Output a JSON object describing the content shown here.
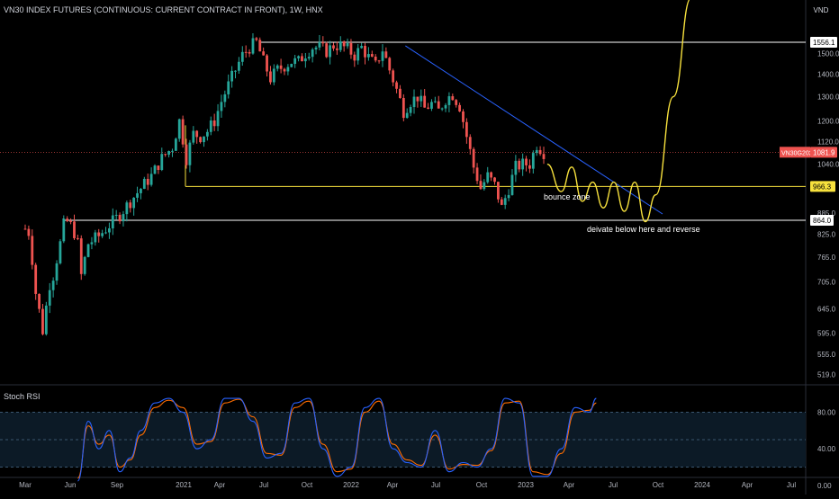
{
  "header": {
    "title": "VN30 INDEX FUTURES (CONTINUOUS: CURRENT CONTRACT IN FRONT), 1W, HNX"
  },
  "price_axis": {
    "currency": "VND",
    "ticks": [
      "1500.0",
      "1400.0",
      "1300.0",
      "1200.0",
      "1120.0",
      "1040.0",
      "885.0",
      "825.0",
      "765.0",
      "705.0",
      "645.0",
      "595.0",
      "555.0",
      "519.0"
    ],
    "tick_values": [
      1500,
      1400,
      1300,
      1200,
      1120,
      1040,
      885,
      825,
      765,
      705,
      645,
      595,
      555,
      519
    ]
  },
  "badges": {
    "level_1556": "1556.1",
    "symbol": "VN30G2023",
    "last_price": "1081.9",
    "level_966": "966.3",
    "level_864": "864.0"
  },
  "annotations": {
    "bounce": "bounce zone",
    "deviate": "deivate below here and reverse"
  },
  "rsi": {
    "title": "Stoch RSI",
    "ticks": [
      "80.00",
      "40.00",
      "0.00"
    ],
    "tick_values": [
      80,
      40,
      0
    ]
  },
  "time_axis": {
    "labels": [
      "Mar",
      "Jun",
      "Sep",
      "2021",
      "Apr",
      "Jul",
      "Oct",
      "2022",
      "Apr",
      "Jul",
      "Oct",
      "2023",
      "Apr",
      "Jul",
      "Oct",
      "2024",
      "Apr",
      "Jul"
    ]
  },
  "colors": {
    "background": "#000000",
    "up": "#26a69a",
    "down": "#ef5350",
    "level_line": "#ffffff",
    "yellow": "#f7e13d",
    "trendline": "#2962ff",
    "rsi_k": "#2962ff",
    "rsi_d": "#ff6d00",
    "rsi_band": "#0c1a26"
  },
  "chart_data": {
    "type": "candlestick",
    "title": "VN30 INDEX FUTURES (CONTINUOUS: CURRENT CONTRACT IN FRONT), 1W, HNX",
    "y_scale": "log",
    "ylim": [
      500,
      1650
    ],
    "x_labels": [
      "Mar",
      "Jun",
      "Sep",
      "2021",
      "Apr",
      "Jul",
      "Oct",
      "2022",
      "Apr",
      "Jul",
      "Oct",
      "2023",
      "Apr",
      "Jul",
      "Oct",
      "2024",
      "Apr",
      "Jul"
    ],
    "close_path": [
      [
        0,
        840
      ],
      [
        1,
        830
      ],
      [
        2,
        760
      ],
      [
        3,
        680
      ],
      [
        4,
        640
      ],
      [
        5,
        600
      ],
      [
        6,
        650
      ],
      [
        7,
        700
      ],
      [
        8,
        720
      ],
      [
        9,
        760
      ],
      [
        10,
        800
      ],
      [
        11,
        850
      ],
      [
        12,
        860
      ],
      [
        13,
        850
      ],
      [
        14,
        830
      ],
      [
        15,
        800
      ],
      [
        16,
        720
      ],
      [
        17,
        760
      ],
      [
        18,
        800
      ],
      [
        21,
        820
      ],
      [
        24,
        850
      ],
      [
        27,
        880
      ],
      [
        30,
        920
      ],
      [
        33,
        960
      ],
      [
        36,
        1000
      ],
      [
        39,
        1060
      ],
      [
        42,
        1100
      ],
      [
        44,
        1200
      ],
      [
        46,
        1060
      ],
      [
        48,
        1150
      ],
      [
        50,
        1140
      ],
      [
        52,
        1160
      ],
      [
        54,
        1200
      ],
      [
        56,
        1280
      ],
      [
        58,
        1350
      ],
      [
        60,
        1420
      ],
      [
        62,
        1490
      ],
      [
        64,
        1530
      ],
      [
        66,
        1556
      ],
      [
        68,
        1460
      ],
      [
        70,
        1380
      ],
      [
        72,
        1420
      ],
      [
        74,
        1440
      ],
      [
        76,
        1460
      ],
      [
        78,
        1460
      ],
      [
        80,
        1500
      ],
      [
        82,
        1530
      ],
      [
        84,
        1530
      ],
      [
        86,
        1510
      ],
      [
        88,
        1540
      ],
      [
        90,
        1540
      ],
      [
        92,
        1520
      ],
      [
        94,
        1490
      ],
      [
        96,
        1530
      ],
      [
        98,
        1480
      ],
      [
        100,
        1440
      ],
      [
        102,
        1520
      ],
      [
        104,
        1420
      ],
      [
        106,
        1330
      ],
      [
        108,
        1240
      ],
      [
        110,
        1280
      ],
      [
        112,
        1300
      ],
      [
        114,
        1250
      ],
      [
        116,
        1270
      ],
      [
        118,
        1240
      ],
      [
        120,
        1290
      ],
      [
        122,
        1310
      ],
      [
        124,
        1260
      ],
      [
        126,
        1140
      ],
      [
        128,
        1030
      ],
      [
        130,
        960
      ],
      [
        132,
        1000
      ],
      [
        134,
        970
      ],
      [
        136,
        900
      ],
      [
        138,
        960
      ],
      [
        140,
        1030
      ],
      [
        142,
        1040
      ],
      [
        144,
        1040
      ],
      [
        146,
        1110
      ],
      [
        148,
        1081.9
      ]
    ],
    "levels": [
      {
        "value": 1556.1,
        "label": "1556.1"
      },
      {
        "value": 1081.9,
        "label": "1081.9"
      },
      {
        "value": 966.3,
        "label": "966.3"
      },
      {
        "value": 864.0,
        "label": "864.0"
      }
    ],
    "projection_path": [
      [
        149,
        1040
      ],
      [
        153,
        950
      ],
      [
        156,
        1030
      ],
      [
        159,
        920
      ],
      [
        162,
        980
      ],
      [
        165,
        900
      ],
      [
        168,
        980
      ],
      [
        171,
        890
      ],
      [
        174,
        980
      ],
      [
        177,
        860
      ],
      [
        180,
        940
      ],
      [
        185,
        1300
      ],
      [
        190,
        1800
      ]
    ],
    "trendline": {
      "start": [
        108,
        1520
      ],
      "end": [
        184,
        880
      ]
    },
    "stoch_rsi": {
      "ylim": [
        0,
        100
      ],
      "bands": [
        20,
        50,
        80
      ],
      "k": [
        [
          0,
          5
        ],
        [
          3,
          70
        ],
        [
          6,
          40
        ],
        [
          9,
          60
        ],
        [
          12,
          15
        ],
        [
          15,
          30
        ],
        [
          18,
          60
        ],
        [
          22,
          90
        ],
        [
          26,
          95
        ],
        [
          30,
          80
        ],
        [
          34,
          40
        ],
        [
          38,
          50
        ],
        [
          42,
          95
        ],
        [
          46,
          95
        ],
        [
          50,
          70
        ],
        [
          54,
          30
        ],
        [
          58,
          35
        ],
        [
          62,
          90
        ],
        [
          66,
          95
        ],
        [
          70,
          40
        ],
        [
          74,
          10
        ],
        [
          78,
          20
        ],
        [
          82,
          85
        ],
        [
          86,
          95
        ],
        [
          90,
          40
        ],
        [
          94,
          25
        ],
        [
          98,
          20
        ],
        [
          102,
          60
        ],
        [
          106,
          15
        ],
        [
          110,
          25
        ],
        [
          114,
          20
        ],
        [
          118,
          40
        ],
        [
          122,
          95
        ],
        [
          126,
          90
        ],
        [
          130,
          10
        ],
        [
          134,
          10
        ],
        [
          138,
          40
        ],
        [
          142,
          85
        ],
        [
          146,
          80
        ],
        [
          148,
          95
        ]
      ],
      "d": [
        [
          0,
          8
        ],
        [
          3,
          65
        ],
        [
          6,
          45
        ],
        [
          9,
          55
        ],
        [
          12,
          20
        ],
        [
          15,
          28
        ],
        [
          18,
          55
        ],
        [
          22,
          85
        ],
        [
          26,
          93
        ],
        [
          30,
          85
        ],
        [
          34,
          45
        ],
        [
          38,
          48
        ],
        [
          42,
          90
        ],
        [
          46,
          94
        ],
        [
          50,
          75
        ],
        [
          54,
          35
        ],
        [
          58,
          33
        ],
        [
          62,
          85
        ],
        [
          66,
          92
        ],
        [
          70,
          45
        ],
        [
          74,
          15
        ],
        [
          78,
          18
        ],
        [
          82,
          80
        ],
        [
          86,
          92
        ],
        [
          90,
          45
        ],
        [
          94,
          28
        ],
        [
          98,
          22
        ],
        [
          102,
          55
        ],
        [
          106,
          18
        ],
        [
          110,
          23
        ],
        [
          114,
          22
        ],
        [
          118,
          38
        ],
        [
          122,
          90
        ],
        [
          126,
          92
        ],
        [
          130,
          15
        ],
        [
          134,
          12
        ],
        [
          138,
          35
        ],
        [
          142,
          80
        ],
        [
          146,
          82
        ],
        [
          148,
          90
        ]
      ]
    }
  }
}
